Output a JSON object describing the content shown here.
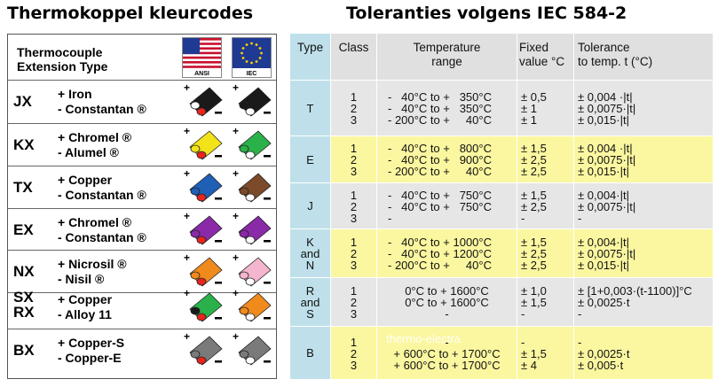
{
  "headings": {
    "left": "Thermokoppel kleurcodes",
    "right": "Toleranties volgens IEC 584-2"
  },
  "left_table": {
    "header": "Thermocouple\nExtension Type",
    "ansi_label": "ANSI",
    "iec_label": "IEC",
    "rows": [
      {
        "code": "JX",
        "wires": "+ Iron\n- Constantan ®",
        "ansi": {
          "body": "#1a1a1a",
          "plus": "#ffffff",
          "minus": "#e8241e"
        },
        "iec": {
          "body": "#1a1a1a",
          "plus": "#1a1a1a",
          "minus": "#ffffff"
        }
      },
      {
        "code": "KX",
        "wires": "+ Chromel ®\n- Alumel ®",
        "ansi": {
          "body": "#f2e21a",
          "plus": "#f2e21a",
          "minus": "#e8241e"
        },
        "iec": {
          "body": "#2bb14a",
          "plus": "#2bb14a",
          "minus": "#ffffff"
        }
      },
      {
        "code": "TX",
        "wires": "+ Copper\n- Constantan ®",
        "ansi": {
          "body": "#1f5fb5",
          "plus": "#1f5fb5",
          "minus": "#e8241e"
        },
        "iec": {
          "body": "#7a4a2a",
          "plus": "#7a4a2a",
          "minus": "#ffffff"
        }
      },
      {
        "code": "EX",
        "wires": "+ Chromel ®\n- Constantan ®",
        "ansi": {
          "body": "#8a2aa8",
          "plus": "#8a2aa8",
          "minus": "#e8241e"
        },
        "iec": {
          "body": "#8a2aa8",
          "plus": "#8a2aa8",
          "minus": "#ffffff"
        }
      },
      {
        "code": "NX",
        "wires": "+ Nicrosil ®\n- Nisil ®",
        "ansi": {
          "body": "#f08a1c",
          "plus": "#f08a1c",
          "minus": "#e8241e"
        },
        "iec": {
          "body": "#f4b5cf",
          "plus": "#f4b5cf",
          "minus": "#ffffff"
        }
      },
      {
        "code": "SX\nRX",
        "wires": "+ Copper\n- Alloy 11",
        "ansi": {
          "body": "#2bb14a",
          "plus": "#1a1a1a",
          "minus": "#e8241e"
        },
        "iec": {
          "body": "#f08a1c",
          "plus": "#f08a1c",
          "minus": "#ffffff"
        }
      },
      {
        "code": "BX",
        "wires": "+ Copper-S\n- Copper-E",
        "ansi": {
          "body": "#7a7a7a",
          "plus": "#7a7a7a",
          "minus": "#e8241e"
        },
        "iec": {
          "body": "#7a7a7a",
          "plus": "#7a7a7a",
          "minus": "#ffffff"
        }
      }
    ]
  },
  "right_table": {
    "colors": {
      "type_col": "#bfe0ea",
      "body": "#e6e6e6",
      "yellow": "#fbf7a0",
      "header": "#e0e0e0"
    },
    "headers": {
      "type": "Type",
      "class": "Class",
      "temp": "Temperature\nrange",
      "fixed": "Fixed\nvalue °C",
      "tol": "Tolerance\nto temp. t (°C)"
    },
    "watermark": "thermo-electra",
    "rows": [
      {
        "type": "T",
        "classes": "1\n2\n3",
        "temp": "-   40°C to +   350°C\n-   40°C to +   350°C\n- 200°C to +     40°C",
        "fixed": "± 0,5\n± 1\n± 1",
        "tol": "± 0,004 ·|t|\n± 0,0075·|t|\n± 0,015·|t|",
        "yellow": false
      },
      {
        "type": "E",
        "classes": "1\n2\n3",
        "temp": "-   40°C to +   800°C\n-   40°C to +   900°C\n- 200°C to +     40°C",
        "fixed": "± 1,5\n± 2,5\n± 2,5",
        "tol": "± 0,004 ·|t|\n± 0,0075·|t|\n± 0,015·|t|",
        "yellow": true
      },
      {
        "type": "J",
        "classes": "1\n2\n3",
        "temp": "-   40°C to +   750°C\n-   40°C to +   750°C\n-",
        "fixed": "± 1,5\n± 2,5\n-",
        "tol": "± 0,004·|t|\n± 0,0075·|t|\n-",
        "yellow": false
      },
      {
        "type": "K\nand\nN",
        "classes": "1\n2\n3",
        "temp": "-   40°C to + 1000°C\n-   40°C to + 1200°C\n- 200°C to +     40°C",
        "fixed": "± 1,5\n± 2,5\n± 2,5",
        "tol": "± 0,004·|t|\n± 0,0075·|t|\n± 0,015·|t|",
        "yellow": true
      },
      {
        "type": "R\nand\nS",
        "classes": "1\n2\n3",
        "temp": "0°C to + 1600°C\n0°C to + 1600°C\n-",
        "fixed": "± 1,0\n± 1,5\n-",
        "tol": "± [1+0,003·(t-1100)]°C\n± 0,0025·t\n-",
        "yellow": false
      },
      {
        "type": "B",
        "classes": "1\n2\n3",
        "temp": "-\n+ 600°C to + 1700°C\n+ 600°C to + 1700°C",
        "fixed": "-\n± 1,5\n± 4",
        "tol": "-\n± 0,0025·t\n± 0,005·t",
        "yellow": true
      }
    ]
  }
}
